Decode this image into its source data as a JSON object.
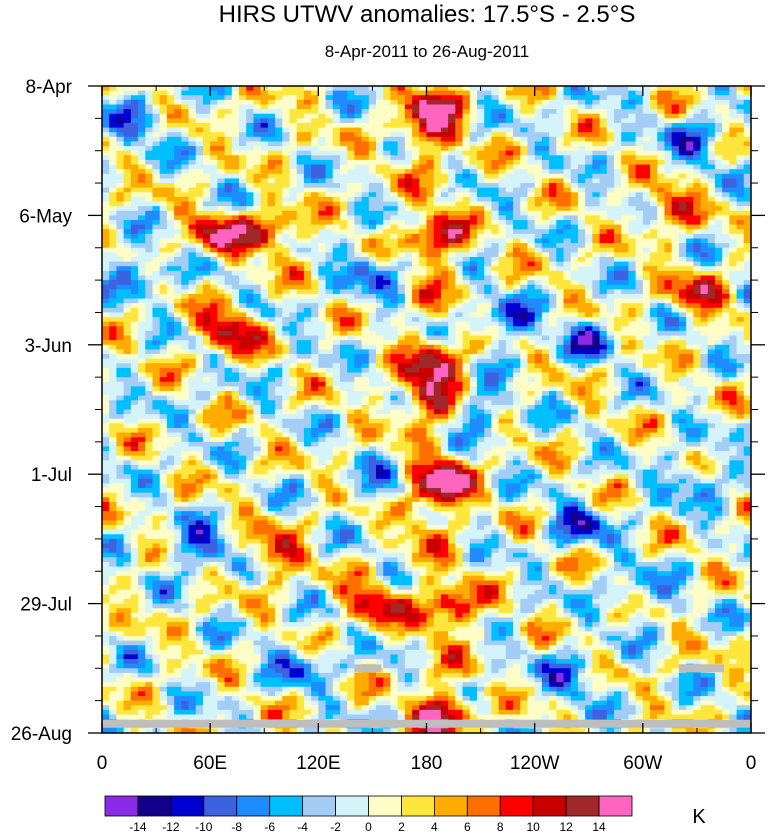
{
  "chart_data": {
    "type": "heatmap",
    "title": "HIRS UTWV anomalies: 17.5°S - 2.5°S",
    "subtitle": "8-Apr-2011 to 26-Aug-2011",
    "x_ticks": [
      "0",
      "60E",
      "120E",
      "180",
      "120W",
      "60W",
      "0"
    ],
    "x_tick_degrees": [
      0,
      60,
      120,
      180,
      240,
      300,
      360
    ],
    "xlim": [
      0,
      360
    ],
    "y_ticks": [
      "8-Apr",
      "6-May",
      "3-Jun",
      "1-Jul",
      "29-Jul",
      "26-Aug"
    ],
    "y_tick_days": [
      0,
      28,
      56,
      84,
      112,
      140
    ],
    "ylim": [
      0,
      140
    ],
    "colorbar": {
      "labels": [
        "-14",
        "-12",
        "-10",
        "-8",
        "-6",
        "-4",
        "-2",
        "0",
        "2",
        "4",
        "6",
        "8",
        "10",
        "12",
        "14"
      ],
      "levels": [
        -14,
        -12,
        -10,
        -8,
        -6,
        -4,
        -2,
        0,
        2,
        4,
        6,
        8,
        10,
        12,
        14
      ],
      "colors": [
        "#8b2be8",
        "#12008c",
        "#0000d2",
        "#3d62e0",
        "#1e8cff",
        "#00bfff",
        "#a4cdf6",
        "#d4f4fa",
        "#fffdc6",
        "#ffe63c",
        "#ffac00",
        "#ff6e00",
        "#ff0000",
        "#c80000",
        "#a02828",
        "#ff64be"
      ],
      "units": "K"
    },
    "missing_data": [
      {
        "x_range": [
          140,
          155
        ],
        "day": 126
      },
      {
        "x_range": [
          320,
          345
        ],
        "day": 126
      },
      {
        "x_range": [
          0,
          360
        ],
        "day": 138
      }
    ],
    "missing_color": "#bebebe",
    "features": [
      {
        "lon": 185,
        "day": 4,
        "amp": 9
      },
      {
        "lon": 180,
        "day": 10,
        "amp": 8
      },
      {
        "lon": 65,
        "day": 32,
        "amp": 12
      },
      {
        "lon": 95,
        "day": 32,
        "amp": 11
      },
      {
        "lon": 185,
        "day": 33,
        "amp": 10
      },
      {
        "lon": 70,
        "day": 53,
        "amp": 13
      },
      {
        "lon": 185,
        "day": 60,
        "amp": 9
      },
      {
        "lon": 180,
        "day": 67,
        "amp": 11
      },
      {
        "lon": 190,
        "day": 86,
        "amp": 14
      },
      {
        "lon": 170,
        "day": 90,
        "amp": 9
      },
      {
        "lon": 95,
        "day": 101,
        "amp": 10
      },
      {
        "lon": 150,
        "day": 112,
        "amp": 11
      },
      {
        "lon": 195,
        "day": 113,
        "amp": 10
      },
      {
        "lon": 190,
        "day": 136,
        "amp": 12
      },
      {
        "lon": 315,
        "day": 26,
        "amp": 9
      },
      {
        "lon": 330,
        "day": 45,
        "amp": 10
      },
      {
        "lon": 20,
        "day": 8,
        "amp": -7
      },
      {
        "lon": 150,
        "day": 40,
        "amp": -8
      },
      {
        "lon": 225,
        "day": 51,
        "amp": -9
      },
      {
        "lon": 270,
        "day": 55,
        "amp": -8
      },
      {
        "lon": 160,
        "day": 88,
        "amp": -10
      },
      {
        "lon": 210,
        "day": 70,
        "amp": -8
      },
      {
        "lon": 55,
        "day": 100,
        "amp": -10
      },
      {
        "lon": 265,
        "day": 95,
        "amp": -9
      },
      {
        "lon": 330,
        "day": 85,
        "amp": -7
      },
      {
        "lon": 300,
        "day": 110,
        "amp": -6
      },
      {
        "lon": 260,
        "day": 128,
        "amp": -8
      },
      {
        "lon": 110,
        "day": 125,
        "amp": -7
      },
      {
        "lon": 20,
        "day": 40,
        "amp": -8
      },
      {
        "lon": 330,
        "day": 12,
        "amp": -8
      }
    ]
  }
}
